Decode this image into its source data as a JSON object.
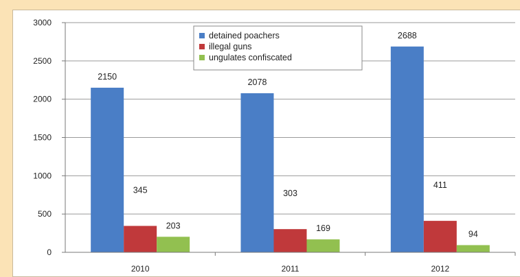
{
  "chart_data": {
    "type": "bar",
    "categories": [
      "2010",
      "2011",
      "2012"
    ],
    "series": [
      {
        "name": "detained poachers",
        "values": [
          2150,
          2078,
          2688
        ],
        "color": "#4a7ec6"
      },
      {
        "name": "illegal guns",
        "values": [
          345,
          303,
          411
        ],
        "color": "#c0393b"
      },
      {
        "name": "ungulates confiscated",
        "values": [
          203,
          169,
          94
        ],
        "color": "#92c050"
      }
    ],
    "ylim": [
      0,
      3000
    ],
    "yticks": [
      0,
      500,
      1000,
      1500,
      2000,
      2500,
      3000
    ],
    "grid": true,
    "legend": "top-center",
    "title": "",
    "xlabel": "",
    "ylabel": ""
  }
}
